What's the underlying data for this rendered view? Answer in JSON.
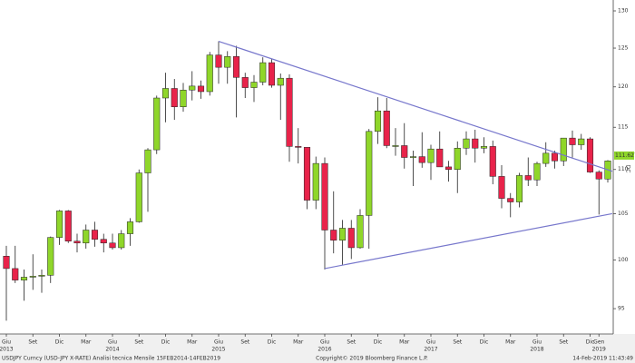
{
  "chart_data": {
    "type": "candlestick",
    "scale": "log",
    "up_color": "#8fd62a",
    "down_color": "#e8234a",
    "trend_color": "#7777cc",
    "categories": [
      "Giu",
      null,
      null,
      "Set",
      null,
      null,
      "Dic",
      null,
      null,
      "Mar",
      null,
      null,
      "Giu",
      null,
      null,
      "Set",
      null,
      null,
      "Dic",
      null,
      null,
      "Mar",
      null,
      null,
      "Giu",
      null,
      null,
      "Set",
      null,
      null,
      "Dic",
      null,
      null,
      "Mar",
      null,
      null,
      "Giu",
      null,
      null,
      "Set",
      null,
      null,
      "Dic",
      null,
      null,
      "Mar",
      null,
      null,
      "Giu",
      null,
      null,
      "Set",
      null,
      null,
      "Dic",
      null,
      null,
      "Mar",
      null,
      null,
      "Giu",
      null,
      null,
      "Set",
      null,
      null,
      "Dic",
      "Gen",
      null
    ],
    "years": [
      {
        "value": 0,
        "label": "2013"
      },
      {
        "value": 12,
        "label": "2014"
      },
      {
        "value": 24,
        "label": "2015"
      },
      {
        "value": 36,
        "label": "2016"
      },
      {
        "value": 48,
        "label": "2017"
      },
      {
        "value": 60,
        "label": "2018"
      },
      {
        "value": 67,
        "label": "2019"
      }
    ],
    "open": [
      100.4,
      99.1,
      97.9,
      98.2,
      98.3,
      98.4,
      102.4,
      105.3,
      102.0,
      101.8,
      103.2,
      102.2,
      101.8,
      101.3,
      102.8,
      104.1,
      109.6,
      112.3,
      118.6,
      119.8,
      117.5,
      119.6,
      120.1,
      119.4,
      124.1,
      122.5,
      123.9,
      121.2,
      119.9,
      120.6,
      123.1,
      120.2,
      121.1,
      112.7,
      112.6,
      106.5,
      110.7,
      103.2,
      102.1,
      103.4,
      101.3,
      104.8,
      114.5,
      117.0,
      112.8,
      112.8,
      111.4,
      111.5,
      110.8,
      112.4,
      110.3,
      110.0,
      112.5,
      113.6,
      112.5,
      112.7,
      109.2,
      106.7,
      106.3,
      109.3,
      108.8,
      110.7,
      111.9,
      111.0,
      113.7,
      112.9,
      113.6,
      109.7,
      108.9
    ],
    "high": [
      101.5,
      101.5,
      99.0,
      100.6,
      99.0,
      102.5,
      105.4,
      105.4,
      102.8,
      103.8,
      104.1,
      102.8,
      102.8,
      103.2,
      104.5,
      110.0,
      112.5,
      118.9,
      121.8,
      121.0,
      120.5,
      122.0,
      120.8,
      124.5,
      125.9,
      124.6,
      125.3,
      121.8,
      121.5,
      123.8,
      123.6,
      121.7,
      121.6,
      114.9,
      112.6,
      111.5,
      111.4,
      107.5,
      104.3,
      104.3,
      105.5,
      114.8,
      118.7,
      118.6,
      114.9,
      115.5,
      112.2,
      114.4,
      112.9,
      114.5,
      111.0,
      113.3,
      114.5,
      114.7,
      113.8,
      113.4,
      110.5,
      107.3,
      109.6,
      111.4,
      110.9,
      113.2,
      112.2,
      113.7,
      114.6,
      114.2,
      113.8,
      109.9,
      111.1
    ],
    "low": [
      93.8,
      97.6,
      95.8,
      96.9,
      96.6,
      97.6,
      101.6,
      101.8,
      100.8,
      101.2,
      101.4,
      100.8,
      101.1,
      101.1,
      101.5,
      104.0,
      105.2,
      111.8,
      115.6,
      115.9,
      116.9,
      118.3,
      118.5,
      118.9,
      120.4,
      120.4,
      116.2,
      118.6,
      118.1,
      120.2,
      119.9,
      115.9,
      110.9,
      110.7,
      105.5,
      105.5,
      99.0,
      100.7,
      99.5,
      100.1,
      101.2,
      101.2,
      113.0,
      112.5,
      111.6,
      110.1,
      108.1,
      110.2,
      108.8,
      110.6,
      108.6,
      107.3,
      111.7,
      110.8,
      111.9,
      108.3,
      105.6,
      104.6,
      105.7,
      108.1,
      108.1,
      110.3,
      110.1,
      110.4,
      111.4,
      112.3,
      109.6,
      104.9,
      108.5
    ],
    "close": [
      99.1,
      97.9,
      98.2,
      98.3,
      98.4,
      102.4,
      105.3,
      102.0,
      101.8,
      103.2,
      102.2,
      101.8,
      101.3,
      102.8,
      104.1,
      109.6,
      112.3,
      118.6,
      119.8,
      117.5,
      119.6,
      120.1,
      119.4,
      124.1,
      122.5,
      123.9,
      121.2,
      119.9,
      120.6,
      123.1,
      120.2,
      121.1,
      112.7,
      112.6,
      106.5,
      110.7,
      103.2,
      102.1,
      103.4,
      101.3,
      104.8,
      114.5,
      117.0,
      112.8,
      112.8,
      111.4,
      111.5,
      110.8,
      112.4,
      110.3,
      110.0,
      112.5,
      113.6,
      112.5,
      112.7,
      109.2,
      106.7,
      106.3,
      109.3,
      108.8,
      110.7,
      111.9,
      111.0,
      113.7,
      112.9,
      113.6,
      109.7,
      108.9,
      111.0
    ],
    "ylim": [
      92.5,
      131.5
    ],
    "yticks": [
      95,
      100,
      105,
      110,
      115,
      120,
      125,
      130
    ],
    "last_price": {
      "value": 111.627,
      "label": "111.627"
    },
    "side_label": "DC",
    "trendlines": [
      {
        "x": [
          24,
          68.5
        ],
        "y": [
          125.9,
          109.8
        ]
      },
      {
        "x": [
          36,
          68.5
        ],
        "y": [
          99.1,
          105.0
        ]
      }
    ],
    "footer_left": "USDJPY Curncy (USD-JPY X-RATE) Analisi tecnica  Mensile 15FEB2014-14FEB2019",
    "footer_center": "Copyright© 2019 Bloomberg Finance L.P.",
    "footer_right": "14-Feb-2019 11:43:49"
  }
}
